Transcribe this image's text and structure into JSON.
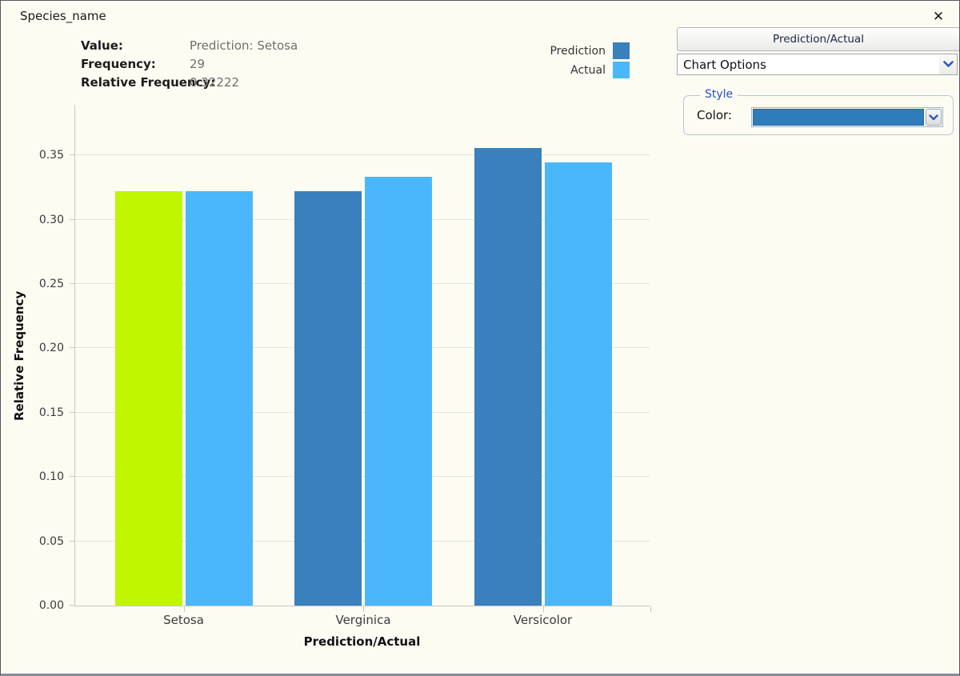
{
  "window": {
    "title": "Species_name",
    "close_glyph": "✕"
  },
  "tooltip": {
    "rows": [
      {
        "label": "Value:",
        "value": "Prediction: Setosa"
      },
      {
        "label": "Frequency:",
        "value": "29"
      },
      {
        "label": "Relative Frequency:",
        "value": "0.32222"
      }
    ]
  },
  "legend": {
    "items": [
      {
        "label": "Prediction",
        "color": "#3a80bc"
      },
      {
        "label": "Actual",
        "color": "#4ab7fa"
      }
    ]
  },
  "panel": {
    "header_button": "Prediction/Actual",
    "options_dropdown": "Chart Options",
    "style_group": {
      "legend": "Style",
      "color_label": "Color:",
      "color_value": "#2f7cba"
    }
  },
  "chart_data": {
    "type": "bar",
    "title": "",
    "xlabel": "Prediction/Actual",
    "ylabel": "Relative Frequency",
    "categories": [
      "Setosa",
      "Verginica",
      "Versicolor"
    ],
    "series": [
      {
        "name": "Prediction",
        "color": "#3a80bc",
        "values": [
          0.32222,
          0.32222,
          0.35556
        ]
      },
      {
        "name": "Actual",
        "color": "#4ab7fa",
        "values": [
          0.32222,
          0.33333,
          0.34444
        ]
      }
    ],
    "highlighted_bar": {
      "series": "Prediction",
      "category": "Setosa",
      "color": "#bff600"
    },
    "ylim": [
      0,
      0.39
    ],
    "yticks": [
      0.0,
      0.05,
      0.1,
      0.15,
      0.2,
      0.25,
      0.3,
      0.35
    ],
    "grid": true,
    "legend_position": "top-right"
  }
}
